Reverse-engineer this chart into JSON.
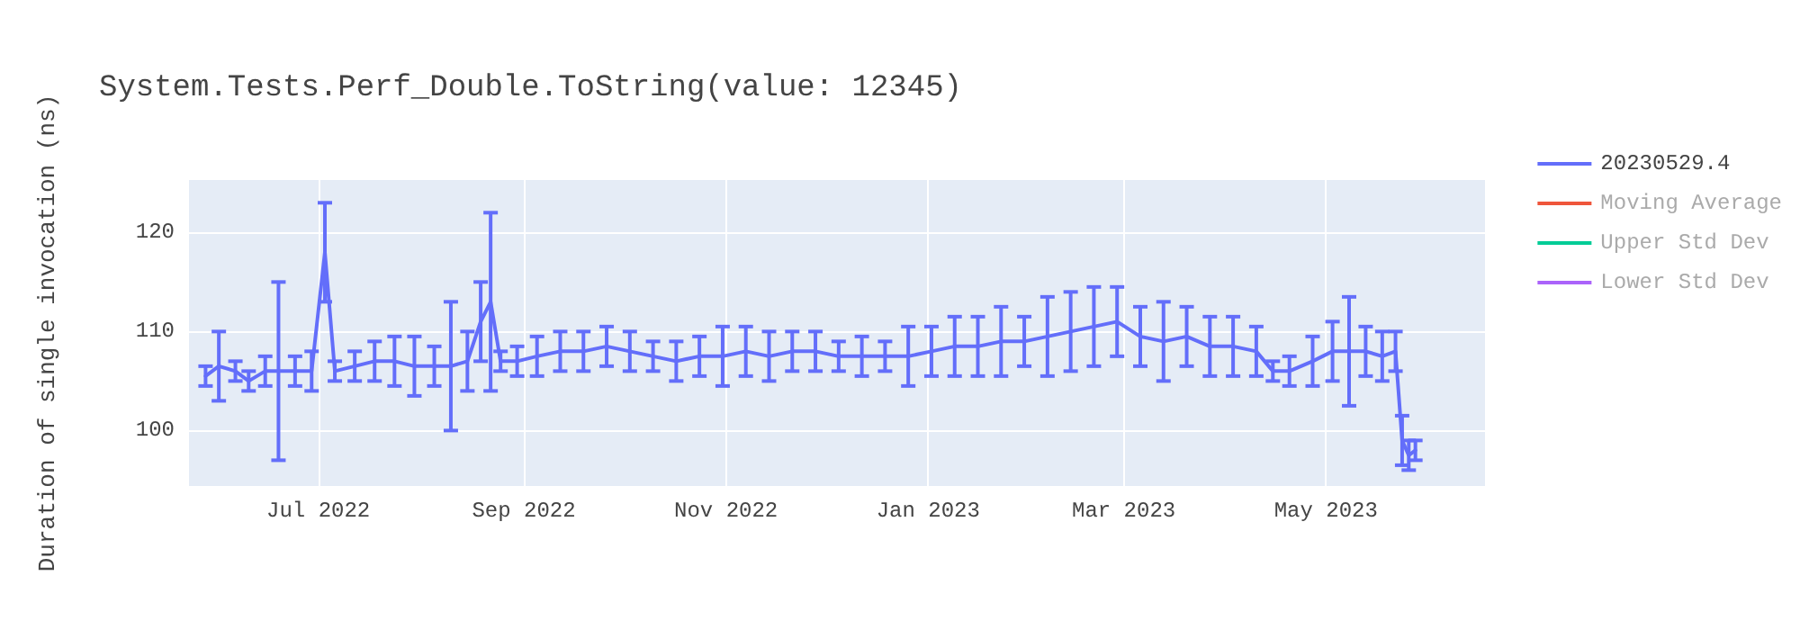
{
  "chart_data": {
    "type": "line",
    "title": "System.Tests.Perf_Double.ToString(value: 12345)",
    "ylabel": "Duration of single invocation (ns)",
    "x": [
      "2022-05-28",
      "2022-06-01",
      "2022-06-06",
      "2022-06-10",
      "2022-06-15",
      "2022-06-19",
      "2022-06-24",
      "2022-06-29",
      "2022-07-03",
      "2022-07-06",
      "2022-07-12",
      "2022-07-18",
      "2022-07-24",
      "2022-07-30",
      "2022-08-05",
      "2022-08-10",
      "2022-08-15",
      "2022-08-19",
      "2022-08-22",
      "2022-08-25",
      "2022-08-30",
      "2022-09-05",
      "2022-09-12",
      "2022-09-19",
      "2022-09-26",
      "2022-10-03",
      "2022-10-10",
      "2022-10-17",
      "2022-10-24",
      "2022-10-31",
      "2022-11-07",
      "2022-11-14",
      "2022-11-21",
      "2022-11-28",
      "2022-12-05",
      "2022-12-12",
      "2022-12-19",
      "2022-12-26",
      "2023-01-02",
      "2023-01-09",
      "2023-01-16",
      "2023-01-23",
      "2023-01-30",
      "2023-02-06",
      "2023-02-13",
      "2023-02-20",
      "2023-02-27",
      "2023-03-06",
      "2023-03-13",
      "2023-03-20",
      "2023-03-27",
      "2023-04-03",
      "2023-04-10",
      "2023-04-15",
      "2023-04-20",
      "2023-04-27",
      "2023-05-03",
      "2023-05-08",
      "2023-05-13",
      "2023-05-18",
      "2023-05-22",
      "2023-05-24",
      "2023-05-26",
      "2023-05-28"
    ],
    "series": [
      {
        "name": "20230529.4",
        "color": "#636efa",
        "values": [
          105.5,
          106.5,
          106,
          105,
          106,
          106,
          106,
          106,
          118,
          106,
          106.5,
          107,
          107,
          106.5,
          106.5,
          106.5,
          107,
          111,
          113,
          107,
          107,
          107.5,
          108,
          108,
          108.5,
          108,
          107.5,
          107,
          107.5,
          107.5,
          108,
          107.5,
          108,
          108,
          107.5,
          107.5,
          107.5,
          107.5,
          108,
          108.5,
          108.5,
          109,
          109,
          109.5,
          110,
          110.5,
          111,
          109.5,
          109,
          109.5,
          108.5,
          108.5,
          108,
          106,
          106,
          107,
          108,
          108,
          108,
          107.5,
          108,
          99,
          97.5,
          98
        ],
        "errors": [
          1,
          3.5,
          1,
          1,
          1.5,
          9,
          1.5,
          2,
          5,
          1,
          1.5,
          2,
          2.5,
          3,
          2,
          6.5,
          3,
          4,
          9,
          1,
          1.5,
          2,
          2,
          2,
          2,
          2,
          1.5,
          2,
          2,
          3,
          2.5,
          2.5,
          2,
          2,
          1.5,
          2,
          1.5,
          3,
          2.5,
          3,
          3,
          3.5,
          2.5,
          4,
          4,
          4,
          3.5,
          3,
          4,
          3,
          3,
          3,
          2.5,
          1,
          1.5,
          2.5,
          3,
          5.5,
          2.5,
          2.5,
          2,
          2.5,
          1.5,
          1
        ]
      },
      {
        "name": "Moving Average",
        "color": "#ef553b",
        "values": [
          null,
          null,
          null,
          null,
          null,
          null,
          null,
          null,
          null,
          null,
          null,
          null,
          null,
          null,
          null,
          null,
          null,
          null,
          null,
          null,
          null,
          null,
          null,
          null,
          null,
          null,
          null,
          null,
          null,
          null,
          null,
          null,
          null,
          null,
          null,
          null,
          null,
          null,
          null,
          null,
          null,
          null,
          null,
          null,
          null,
          null,
          null,
          null,
          null,
          null,
          null,
          null,
          null,
          null,
          null,
          null,
          null,
          null,
          null,
          null,
          null,
          null,
          null,
          null
        ]
      },
      {
        "name": "Upper Std Dev",
        "color": "#00cc96",
        "values": [
          null,
          null,
          null,
          null,
          null,
          null,
          null,
          null,
          null,
          null,
          null,
          null,
          null,
          null,
          null,
          null,
          null,
          null,
          null,
          null,
          null,
          null,
          null,
          null,
          null,
          null,
          null,
          null,
          null,
          null,
          null,
          null,
          null,
          null,
          null,
          null,
          null,
          null,
          null,
          null,
          null,
          null,
          null,
          null,
          null,
          null,
          null,
          null,
          null,
          null,
          null,
          null,
          null,
          null,
          null,
          null,
          null,
          null,
          null,
          null,
          null,
          null,
          null,
          null
        ]
      },
      {
        "name": "Lower Std Dev",
        "color": "#ab63fa",
        "values": [
          null,
          null,
          null,
          null,
          null,
          null,
          null,
          null,
          null,
          null,
          null,
          null,
          null,
          null,
          null,
          null,
          null,
          null,
          null,
          null,
          null,
          null,
          null,
          null,
          null,
          null,
          null,
          null,
          null,
          null,
          null,
          null,
          null,
          null,
          null,
          null,
          null,
          null,
          null,
          null,
          null,
          null,
          null,
          null,
          null,
          null,
          null,
          null,
          null,
          null,
          null,
          null,
          null,
          null,
          null,
          null,
          null,
          null,
          null,
          null,
          null,
          null,
          null,
          null
        ]
      }
    ],
    "xlim": [
      "2022-05-23",
      "2023-06-18"
    ],
    "xticks": [
      {
        "value": "2022-07-01",
        "label": "Jul 2022"
      },
      {
        "value": "2022-09-01",
        "label": "Sep 2022"
      },
      {
        "value": "2022-11-01",
        "label": "Nov 2022"
      },
      {
        "value": "2023-01-01",
        "label": "Jan 2023"
      },
      {
        "value": "2023-03-01",
        "label": "Mar 2023"
      },
      {
        "value": "2023-05-01",
        "label": "May 2023"
      }
    ],
    "ylim": [
      94.4,
      125.3
    ],
    "yticks": [
      100,
      110,
      120
    ],
    "grid": true,
    "legend": "top right",
    "marker": "none",
    "line_style": "solid"
  }
}
